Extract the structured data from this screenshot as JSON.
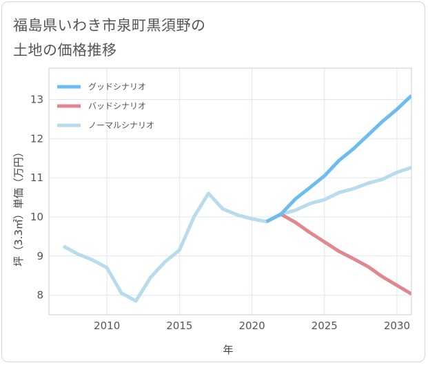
{
  "title": {
    "line1": "福島県いわき市泉町黒須野の",
    "line2": "土地の価格推移"
  },
  "chart_data": {
    "type": "line",
    "xlabel": "年",
    "ylabel": "坪（3.3㎡）単価（万円）",
    "xlim": [
      2006,
      2031
    ],
    "ylim": [
      7.5,
      13.8
    ],
    "x_ticks": [
      2010,
      2015,
      2020,
      2025,
      2030
    ],
    "y_ticks": [
      8,
      9,
      10,
      11,
      12,
      13
    ],
    "grid": true,
    "legend_position": "top-left",
    "series": [
      {
        "name": "グッドシナリオ",
        "color": "#6bbcef",
        "x": [
          2021,
          2022,
          2023,
          2024,
          2025,
          2026,
          2027,
          2028,
          2029,
          2030,
          2031
        ],
        "y": [
          9.88,
          10.07,
          10.46,
          10.75,
          11.05,
          11.44,
          11.74,
          12.09,
          12.44,
          12.75,
          13.1
        ]
      },
      {
        "name": "バッドシナリオ",
        "color": "#e0878f",
        "x": [
          2021,
          2022,
          2023,
          2024,
          2025,
          2026,
          2027,
          2028,
          2029,
          2030,
          2031
        ],
        "y": [
          9.88,
          10.07,
          9.86,
          9.6,
          9.36,
          9.12,
          8.93,
          8.73,
          8.47,
          8.25,
          8.03
        ]
      },
      {
        "name": "ノーマルシナリオ",
        "color": "#b7dcec",
        "x": [
          2007,
          2008,
          2009,
          2010,
          2011,
          2012,
          2013,
          2014,
          2015,
          2016,
          2017,
          2018,
          2019,
          2020,
          2021,
          2022,
          2023,
          2024,
          2025,
          2026,
          2027,
          2028,
          2029,
          2030,
          2031
        ],
        "y": [
          9.25,
          9.05,
          8.9,
          8.7,
          8.05,
          7.85,
          8.45,
          8.85,
          9.15,
          10.0,
          10.6,
          10.2,
          10.05,
          9.95,
          9.88,
          10.07,
          10.17,
          10.34,
          10.44,
          10.62,
          10.72,
          10.86,
          10.96,
          11.14,
          11.26
        ]
      }
    ]
  }
}
